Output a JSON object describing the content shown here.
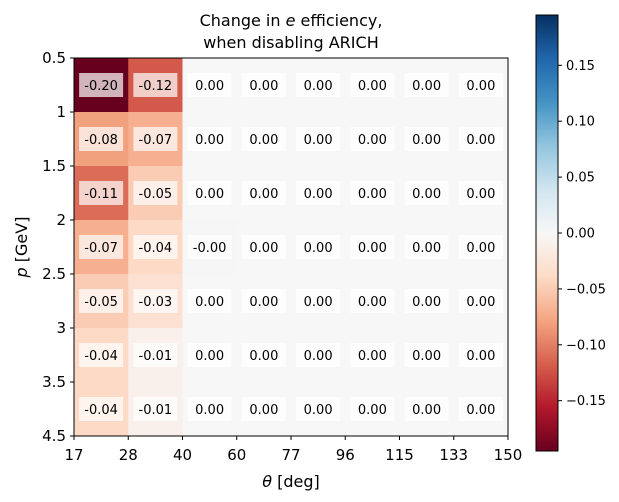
{
  "chart_data": {
    "type": "heatmap",
    "title_line1": "Change in ",
    "title_symbol": "e",
    "title_line1_suffix": " efficiency,",
    "title_line2": "when disabling ARICH",
    "xlabel_symbol": "θ",
    "xlabel_unit": " [deg]",
    "ylabel_symbol": "p",
    "ylabel_unit": " [GeV]",
    "x_edges": [
      17,
      28,
      40,
      60,
      77,
      96,
      115,
      133,
      150
    ],
    "x_tick_labels": [
      "17",
      "28",
      "40",
      "60",
      "77",
      "96",
      "115",
      "133",
      "150"
    ],
    "y_edges": [
      0.5,
      1,
      1.5,
      2,
      2.5,
      3,
      3.5,
      4.5
    ],
    "y_tick_labels": [
      "0.5",
      "1",
      "1.5",
      "2",
      "2.5",
      "3",
      "3.5",
      "4.5"
    ],
    "values": [
      [
        -0.2,
        -0.12,
        0.0,
        0.0,
        0.0,
        0.0,
        0.0,
        0.0
      ],
      [
        -0.08,
        -0.07,
        0.0,
        0.0,
        0.0,
        0.0,
        0.0,
        0.0
      ],
      [
        -0.11,
        -0.05,
        0.0,
        0.0,
        0.0,
        0.0,
        0.0,
        0.0
      ],
      [
        -0.07,
        -0.04,
        -0.001,
        0.0,
        0.0,
        0.0,
        0.0,
        0.0
      ],
      [
        -0.05,
        -0.03,
        0.0,
        0.0,
        0.0,
        0.0,
        0.0,
        0.0
      ],
      [
        -0.04,
        -0.01,
        0.0,
        0.0,
        0.0,
        0.0,
        0.0,
        0.0
      ],
      [
        -0.04,
        -0.01,
        0.0,
        0.0,
        0.0,
        0.0,
        0.0,
        0.0
      ]
    ],
    "cell_labels": [
      [
        "-0.20",
        "-0.12",
        "0.00",
        "0.00",
        "0.00",
        "0.00",
        "0.00",
        "0.00"
      ],
      [
        "-0.08",
        "-0.07",
        "0.00",
        "0.00",
        "0.00",
        "0.00",
        "0.00",
        "0.00"
      ],
      [
        "-0.11",
        "-0.05",
        "0.00",
        "0.00",
        "0.00",
        "0.00",
        "0.00",
        "0.00"
      ],
      [
        "-0.07",
        "-0.04",
        "-0.00",
        "0.00",
        "0.00",
        "0.00",
        "0.00",
        "0.00"
      ],
      [
        "-0.05",
        "-0.03",
        "0.00",
        "0.00",
        "0.00",
        "0.00",
        "0.00",
        "0.00"
      ],
      [
        "-0.04",
        "-0.01",
        "0.00",
        "0.00",
        "0.00",
        "0.00",
        "0.00",
        "0.00"
      ],
      [
        "-0.04",
        "-0.01",
        "0.00",
        "0.00",
        "0.00",
        "0.00",
        "0.00",
        "0.00"
      ]
    ],
    "colormap": "RdBu",
    "vmin": -0.195,
    "vmax": 0.195,
    "colorbar_ticks": [
      0.15,
      0.1,
      0.05,
      0.0,
      -0.05,
      -0.1,
      -0.15
    ],
    "colorbar_tick_labels": [
      "0.15",
      "0.10",
      "0.05",
      "0.00",
      "−0.05",
      "−0.10",
      "−0.15"
    ],
    "grid": false,
    "legend": "none"
  }
}
